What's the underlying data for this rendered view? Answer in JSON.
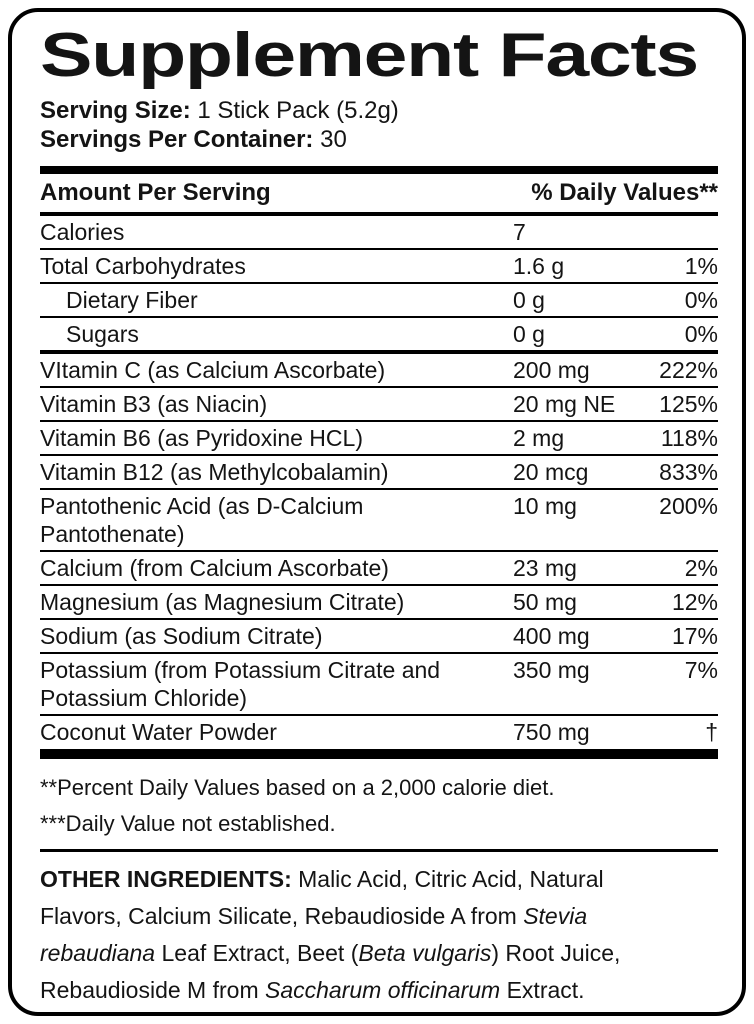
{
  "title": "Supplement Facts",
  "serving": {
    "size_label": "Serving Size:",
    "size_value": "1 Stick Pack (5.2g)",
    "container_label": "Servings Per Container:",
    "container_value": "30"
  },
  "table": {
    "header": {
      "left": "Amount Per Serving",
      "right": "% Daily Values**"
    },
    "rows": [
      {
        "name": "Calories",
        "amount": "7",
        "dv": "",
        "indent": false,
        "divider": "thin"
      },
      {
        "name": "Total Carbohydrates",
        "amount": "1.6 g",
        "dv": "1%",
        "indent": false,
        "divider": "thin"
      },
      {
        "name": "Dietary Fiber",
        "amount": "0 g",
        "dv": "0%",
        "indent": true,
        "divider": "thin"
      },
      {
        "name": "Sugars",
        "amount": "0 g",
        "dv": "0%",
        "indent": true,
        "divider": "medium"
      },
      {
        "name": "VItamin C (as Calcium Ascorbate)",
        "amount": "200 mg",
        "dv": "222%",
        "indent": false,
        "divider": "thin"
      },
      {
        "name": "Vitamin B3 (as Niacin)",
        "amount": "20 mg NE",
        "dv": "125%",
        "indent": false,
        "divider": "thin"
      },
      {
        "name": "Vitamin B6 (as Pyridoxine HCL)",
        "amount": "2 mg",
        "dv": "118%",
        "indent": false,
        "divider": "thin"
      },
      {
        "name": "Vitamin B12 (as Methylcobalamin)",
        "amount": "20 mcg",
        "dv": "833%",
        "indent": false,
        "divider": "thin"
      },
      {
        "name": "Pantothenic Acid (as D-Calcium\nPantothenate)",
        "amount": "10 mg",
        "dv": "200%",
        "indent": false,
        "divider": "thin"
      },
      {
        "name": "Calcium (from Calcium Ascorbate)",
        "amount": "23 mg",
        "dv": "2%",
        "indent": false,
        "divider": "thin"
      },
      {
        "name": "Magnesium (as Magnesium Citrate)",
        "amount": "50 mg",
        "dv": "12%",
        "indent": false,
        "divider": "thin"
      },
      {
        "name": "Sodium (as Sodium Citrate)",
        "amount": "400 mg",
        "dv": "17%",
        "indent": false,
        "divider": "thin"
      },
      {
        "name": "Potassium (from Potassium Citrate and\nPotassium Chloride)",
        "amount": "350 mg",
        "dv": "7%",
        "indent": false,
        "divider": "thin"
      },
      {
        "name": "Coconut Water Powder",
        "amount": "750 mg",
        "dv": "†",
        "indent": false,
        "divider": "thick"
      }
    ]
  },
  "footnotes": [
    "**Percent Daily Values based on a 2,000 calorie diet.",
    "***Daily Value not established."
  ],
  "other_ingredients": {
    "segments": [
      {
        "text": "OTHER INGREDIENTS:",
        "bold": true
      },
      {
        "text": " Malic Acid, Citric Acid, Natural\nFlavors, Calcium Silicate, Rebaudioside A from "
      },
      {
        "text": "Stevia\nrebaudiana",
        "italic": true
      },
      {
        "text": " Leaf Extract, Beet ("
      },
      {
        "text": "Beta vulgaris",
        "italic": true
      },
      {
        "text": ") Root Juice,\nRebaudioside M from "
      },
      {
        "text": "Saccharum officinarum",
        "italic": true
      },
      {
        "text": " Extract."
      }
    ]
  },
  "colors": {
    "text": "#141414",
    "border": "#000000",
    "background": "#ffffff"
  }
}
